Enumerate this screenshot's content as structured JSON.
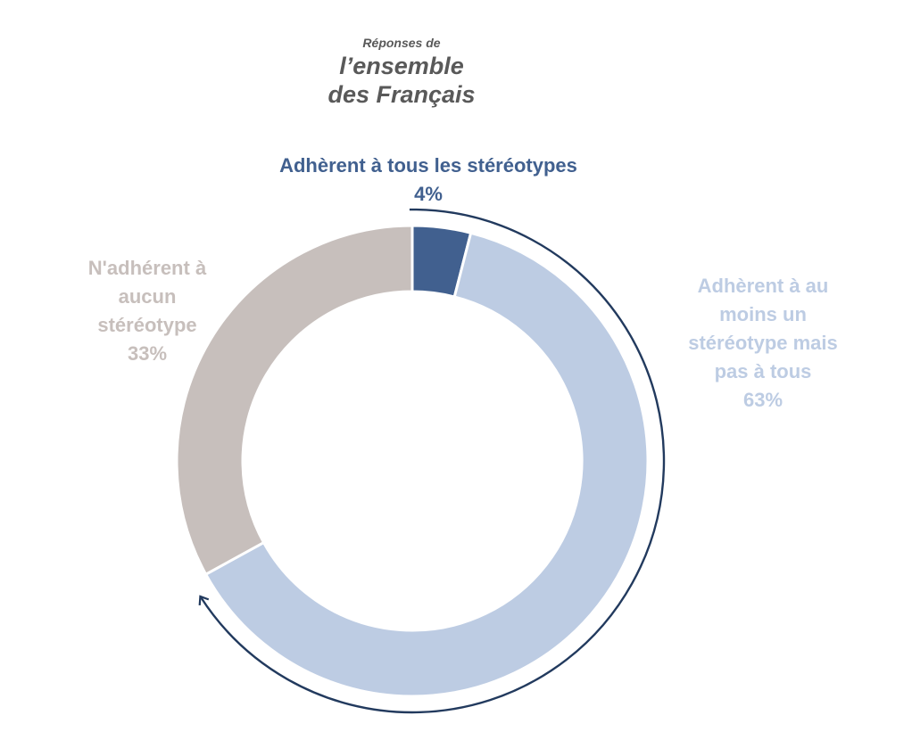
{
  "title": {
    "line1": "Réponses de",
    "line2": "l’ensemble",
    "line3": "des Français"
  },
  "chart_data": {
    "type": "pie",
    "style": "donut",
    "start": "top",
    "direction": "clockwise",
    "slices": [
      {
        "label_lines": [
          "Adhèrent à tous les stéréotypes"
        ],
        "value": 4,
        "value_label": "4%",
        "color": "#41608F",
        "label_position": "top"
      },
      {
        "label_lines": [
          "Adhèrent à au",
          "moins un",
          "stéréotype mais",
          "pas à tous"
        ],
        "value": 63,
        "value_label": "63%",
        "color": "#BDCCE3",
        "label_position": "right"
      },
      {
        "label_lines": [
          "N'adhérent à",
          "aucun",
          "stéréotype"
        ],
        "value": 33,
        "value_label": "33%",
        "color": "#C7BFBC",
        "label_position": "left"
      }
    ],
    "annotation_arrow": {
      "color": "#223A5E",
      "spans": "first two slices"
    }
  }
}
